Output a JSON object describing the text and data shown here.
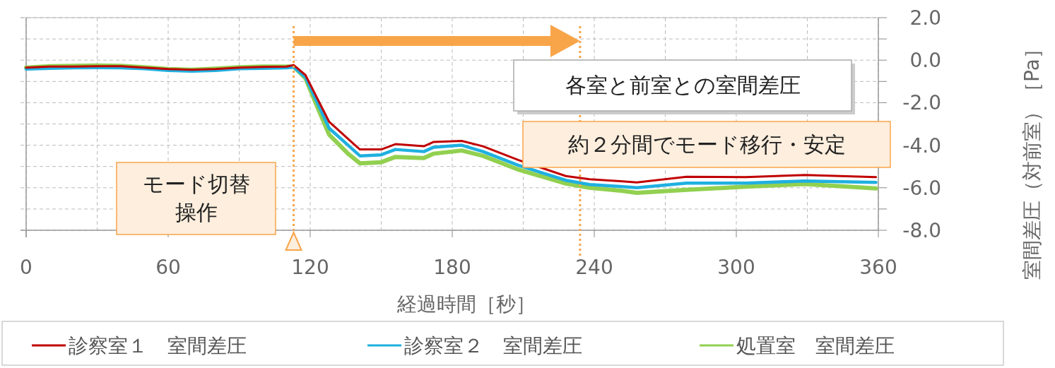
{
  "chart_data": {
    "type": "line",
    "xlabel": "経過時間［秒］",
    "ylabel": "室間差圧（対前室）［Pa］",
    "x": [
      0,
      10,
      20,
      30,
      40,
      50,
      60,
      70,
      80,
      90,
      100,
      110,
      113,
      118,
      123,
      128,
      136,
      141,
      150,
      156,
      168,
      172,
      184,
      193,
      208,
      228,
      238,
      252,
      258,
      279,
      304,
      329,
      359
    ],
    "series": [
      {
        "name": "診察室１　室間差圧",
        "color": "#c00000",
        "values": [
          -0.35,
          -0.3,
          -0.3,
          -0.28,
          -0.28,
          -0.35,
          -0.42,
          -0.45,
          -0.42,
          -0.35,
          -0.32,
          -0.3,
          -0.23,
          -0.7,
          -1.8,
          -2.9,
          -3.7,
          -4.2,
          -4.2,
          -3.95,
          -4.05,
          -3.85,
          -3.8,
          -4.05,
          -4.7,
          -5.45,
          -5.6,
          -5.7,
          -5.75,
          -5.48,
          -5.5,
          -5.4,
          -5.5
        ]
      },
      {
        "name": "診察室２　室間差圧",
        "color": "#1fb0e0",
        "values": [
          -0.42,
          -0.38,
          -0.36,
          -0.35,
          -0.36,
          -0.4,
          -0.48,
          -0.52,
          -0.48,
          -0.4,
          -0.38,
          -0.36,
          -0.33,
          -0.8,
          -2.0,
          -3.2,
          -4.0,
          -4.5,
          -4.45,
          -4.2,
          -4.3,
          -4.1,
          -4.0,
          -4.3,
          -4.95,
          -5.65,
          -5.85,
          -5.95,
          -6.0,
          -5.78,
          -5.78,
          -5.68,
          -5.75
        ]
      },
      {
        "name": "処置室　室間差圧",
        "color": "#92d050",
        "values": [
          -0.35,
          -0.28,
          -0.27,
          -0.25,
          -0.27,
          -0.33,
          -0.42,
          -0.45,
          -0.4,
          -0.33,
          -0.3,
          -0.3,
          -0.3,
          -0.85,
          -2.2,
          -3.5,
          -4.4,
          -4.85,
          -4.8,
          -4.55,
          -4.6,
          -4.4,
          -4.25,
          -4.5,
          -5.15,
          -5.8,
          -6.0,
          -6.15,
          -6.24,
          -6.1,
          -5.95,
          -5.82,
          -6.03
        ]
      }
    ],
    "xlim": [
      0,
      360
    ],
    "xticks": [
      0,
      {
        "value": 30,
        "label": null
      },
      60,
      {
        "value": 90,
        "label": null
      },
      120,
      {
        "value": 150,
        "label": null
      },
      180,
      {
        "value": 210,
        "label": null
      },
      240,
      {
        "value": 270,
        "label": null
      },
      300,
      {
        "value": 330,
        "label": null
      },
      360
    ],
    "ylim": [
      -8,
      2
    ],
    "yticks": [
      {
        "value": 2,
        "label": "2.0"
      },
      {
        "value": 1,
        "label": null
      },
      {
        "value": 0,
        "label": "0.0"
      },
      {
        "value": -1,
        "label": null
      },
      {
        "value": -2,
        "label": "-2.0"
      },
      {
        "value": -3,
        "label": null
      },
      {
        "value": -4,
        "label": "-4.0"
      },
      {
        "value": -5,
        "label": null
      },
      {
        "value": -6,
        "label": "-6.0"
      },
      {
        "value": -7,
        "label": null
      },
      {
        "value": -8,
        "label": "-8.0"
      }
    ],
    "grid": true,
    "legend": "bottom",
    "ref_lines": [
      {
        "axis": "x",
        "value": 113,
        "color": "#f8a54a",
        "line_style": "dotted"
      },
      {
        "axis": "x",
        "value": 234,
        "color": "#f8a54a",
        "line_style": "dotted"
      }
    ],
    "annotations": [
      "モード切替操作",
      {
        "text": "各室と前室との室間差圧",
        "x": 234,
        "y": 0.9
      },
      "約２分間でモード移行・安定"
    ]
  }
}
